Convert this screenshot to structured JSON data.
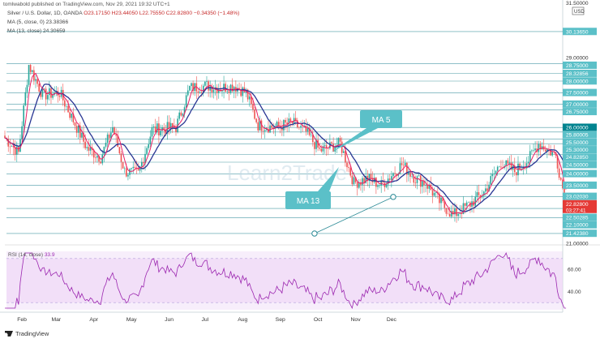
{
  "header": {
    "publisher": "tomlwabold published on TradingView.com, Nov 29, 2021 19:32 UTC+1"
  },
  "legend": {
    "symbol": "Silver / U.S. Dollar, 1D, OANDA",
    "ohlc": "O23.17150 H23.44050 L22.75550 C22.82800 −0.34350 (−1.48%)",
    "ma5": "MA (5, close, 0) 23.38366",
    "ma13": "MA (13, close) 24.30659"
  },
  "currency_badge": "USD",
  "annotations": {
    "ma5": "MA 5",
    "ma13": "MA 13"
  },
  "watermark": "Learn2Trade",
  "footer": {
    "brand": "TradingView"
  },
  "colors": {
    "up": "#26a69a",
    "down": "#ef5350",
    "ma5": "#e91e63",
    "ma13": "#283593",
    "hline": "#2b8a96",
    "rsi": "#9c27b0",
    "rsi_bg": "#efd9f6",
    "annot": "#4fb8c2"
  },
  "chart_data": {
    "type": "candlestick",
    "x_labels": [
      "Feb",
      "Mar",
      "Apr",
      "May",
      "Jun",
      "Jul",
      "Aug",
      "Sep",
      "Oct",
      "Nov",
      "Dec"
    ],
    "ylim": [
      21.0,
      31.5
    ],
    "price_axis_labels": [
      "30.13650",
      "29.00000",
      "28.75000",
      "28.32856",
      "28.00000",
      "27.50000",
      "27.00000",
      "26.75000",
      "26.00000",
      "25.80005",
      "25.50000",
      "25.30000",
      "24.82850",
      "24.50000",
      "24.00000",
      "23.50000",
      "23.02030",
      "22.82800",
      "22.50285",
      "22.10000",
      "21.42380",
      "21.00000"
    ],
    "top_cut_label": "31.50000",
    "current_price": "22.82800",
    "countdown": "03:27:41",
    "highlighted_level": "26.00000",
    "horizontal_levels": [
      30.1365,
      28.75,
      28.32856,
      28.0,
      27.5,
      27.0,
      26.75,
      26.0,
      25.80005,
      25.5,
      25.3,
      24.8285,
      24.5,
      24.0,
      23.5,
      23.0203,
      22.50285,
      22.1,
      21.4238
    ],
    "trendline": [
      {
        "date": "2021-09-29",
        "price": 21.42
      },
      {
        "date": "2021-12-02",
        "price": 23.0
      }
    ],
    "series": [
      {
        "name": "Silver / U.S. Dollar",
        "key_prices": [
          [
            0,
            25.55
          ],
          [
            8,
            24.9
          ],
          [
            14,
            28.7
          ],
          [
            22,
            27.4
          ],
          [
            32,
            27.5
          ],
          [
            40,
            26.3
          ],
          [
            48,
            25.1
          ],
          [
            56,
            24.7
          ],
          [
            63,
            26.0
          ],
          [
            70,
            24.1
          ],
          [
            78,
            24.0
          ],
          [
            86,
            25.9
          ],
          [
            100,
            26.0
          ],
          [
            108,
            27.7
          ],
          [
            118,
            27.8
          ],
          [
            126,
            27.7
          ],
          [
            134,
            27.8
          ],
          [
            141,
            27.5
          ],
          [
            148,
            26.1
          ],
          [
            158,
            26.0
          ],
          [
            168,
            26.2
          ],
          [
            176,
            25.8
          ],
          [
            184,
            25.0
          ],
          [
            196,
            25.3
          ],
          [
            204,
            23.6
          ],
          [
            212,
            23.8
          ],
          [
            220,
            23.5
          ],
          [
            232,
            24.4
          ],
          [
            240,
            23.8
          ],
          [
            246,
            23.6
          ],
          [
            254,
            22.8
          ],
          [
            262,
            22.2
          ],
          [
            272,
            22.7
          ],
          [
            280,
            23.2
          ],
          [
            290,
            24.5
          ],
          [
            298,
            24.1
          ],
          [
            306,
            24.6
          ],
          [
            312,
            25.3
          ],
          [
            316,
            25.1
          ],
          [
            322,
            24.8
          ],
          [
            326,
            23.4
          ],
          [
            328,
            22.83
          ]
        ]
      },
      {
        "name": "MA (5, close, 0)",
        "value": 23.38366
      },
      {
        "name": "MA (13, close)",
        "value": 24.30659
      }
    ],
    "rsi": {
      "label": "RSI (14, close)",
      "value": 33.9,
      "ylim": [
        25,
        75
      ],
      "levels": [
        70,
        30
      ],
      "axis_labels": [
        "60.00",
        "40.00"
      ]
    }
  }
}
